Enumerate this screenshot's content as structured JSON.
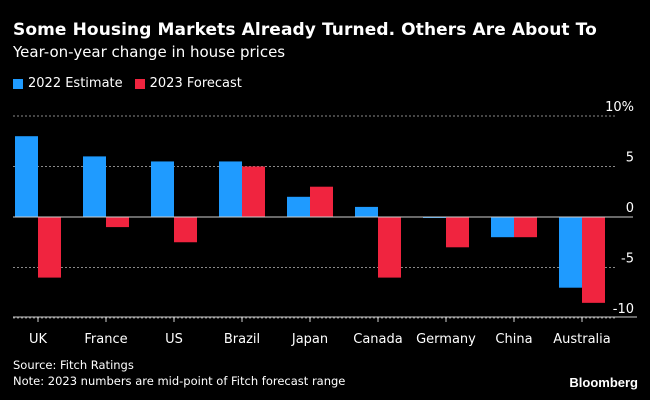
{
  "header": {
    "title": "Some Housing Markets Already Turned. Others Are About To",
    "subtitle": "Year-on-year change in house prices"
  },
  "legend": [
    {
      "label": "2022 Estimate",
      "color": "#1f9bff"
    },
    {
      "label": "2023 Forecast",
      "color": "#f0243f"
    }
  ],
  "footer": {
    "source": "Source: Fitch Ratings",
    "note": "Note: 2023 numbers are mid-point of Fitch forecast range",
    "brand": "Bloomberg"
  },
  "chart_data": {
    "type": "bar",
    "title": "Some Housing Markets Already Turned. Others Are About To",
    "subtitle": "Year-on-year change in house prices",
    "xlabel": "",
    "ylabel": "",
    "categories": [
      "UK",
      "France",
      "US",
      "Brazil",
      "Japan",
      "Canada",
      "Germany",
      "China",
      "Australia"
    ],
    "series": [
      {
        "name": "2022 Estimate",
        "color": "#1f9bff",
        "values": [
          8.0,
          6.0,
          5.5,
          5.5,
          2.0,
          1.0,
          -0.1,
          -2.0,
          -7.0
        ]
      },
      {
        "name": "2023 Forecast",
        "color": "#f0243f",
        "values": [
          -6.0,
          -1.0,
          -2.5,
          5.0,
          3.0,
          -6.0,
          -3.0,
          -2.0,
          -8.5
        ]
      }
    ],
    "ylim": [
      -10,
      10
    ],
    "yticks": [
      10,
      5,
      0,
      -5,
      -10
    ],
    "ytick_labels": [
      "10%",
      "5",
      "0",
      "-5",
      "-10"
    ],
    "grid": true,
    "legend_position": "top-left",
    "y_axis_side": "right"
  }
}
